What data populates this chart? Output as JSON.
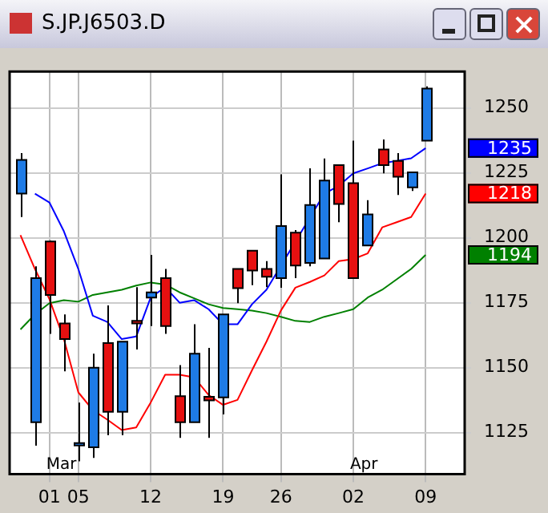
{
  "chart_data": {
    "type": "candlestick",
    "title": "S.JP.J6503.D",
    "categories": [
      null,
      null,
      "01",
      null,
      "05",
      null,
      null,
      null,
      null,
      "12",
      null,
      null,
      null,
      null,
      "19",
      null,
      null,
      null,
      "26",
      null,
      null,
      null,
      null,
      "02",
      null,
      null,
      null,
      null,
      "09"
    ],
    "ohlc": [
      [
        1217,
        1232.6,
        1208,
        1230
      ],
      [
        1129,
        1189,
        1120,
        1184.5
      ],
      [
        1198.6,
        1199,
        1163,
        1178
      ],
      [
        1167,
        1170.5,
        1148.6,
        1161
      ],
      [
        1121,
        1136.6,
        1114,
        1121
      ],
      [
        1119.4,
        1155.4,
        1115.3,
        1150
      ],
      [
        1159.5,
        1174,
        1124,
        1133
      ],
      [
        1133,
        1160,
        1124,
        1160
      ],
      [
        1168,
        1181,
        1157,
        1167
      ],
      [
        1177,
        1193.4,
        1166,
        1179
      ],
      [
        1184.5,
        1188,
        1163,
        1166
      ],
      [
        1139,
        1151,
        1123,
        1129
      ],
      [
        1129,
        1166.7,
        1129,
        1155.4
      ],
      [
        1138.8,
        1157.6,
        1123,
        1137.4
      ],
      [
        1138.6,
        1170.5,
        1132,
        1170.5
      ],
      [
        1188,
        1188,
        1174.8,
        1180.6
      ],
      [
        1195,
        1195,
        1181.8,
        1187.4
      ],
      [
        1188,
        1191,
        1181,
        1185
      ],
      [
        1184.5,
        1224.4,
        1180.8,
        1204.5
      ],
      [
        1202,
        1203,
        1184.5,
        1189.3
      ],
      [
        1190.3,
        1226.7,
        1189,
        1212.6
      ],
      [
        1192,
        1230.5,
        1192,
        1222
      ],
      [
        1228,
        1228,
        1206,
        1213
      ],
      [
        1221,
        1237.4,
        1184.5,
        1184.5
      ],
      [
        1197,
        1214.5,
        1197,
        1209
      ],
      [
        1234,
        1237.8,
        1224.8,
        1228
      ],
      [
        1229.6,
        1232.6,
        1216.5,
        1223.5
      ],
      [
        1219.4,
        1225.2,
        1218,
        1225.2
      ],
      [
        1237.4,
        1258.3,
        1237.4,
        1257.4
      ]
    ],
    "colors": [
      "#1e7be6",
      "#1e7be6",
      "#e61010",
      "#e61010",
      "#1e7be6",
      "#1e7be6",
      "#e61010",
      "#1e7be6",
      "#e61010",
      "#1e7be6",
      "#e61010",
      "#e61010",
      "#1e7be6",
      "#e61010",
      "#1e7be6",
      "#e61010",
      "#e61010",
      "#e61010",
      "#1e7be6",
      "#e61010",
      "#1e7be6",
      "#1e7be6",
      "#e61010",
      "#e61010",
      "#1e7be6",
      "#e61010",
      "#e61010",
      "#1e7be6",
      "#1e7be6"
    ],
    "series": [
      {
        "type": "line",
        "color": "#0000ff",
        "values": [
          null,
          1217,
          1213.6,
          1202.5,
          1188,
          1170,
          1167.6,
          1161,
          1162,
          1177,
          1181,
          1175,
          1176,
          1172.5,
          1166.7,
          1166.7,
          1174.4,
          1180,
          null,
          null,
          null,
          1217,
          1220,
          1224.8,
          1226.7,
          1228.7,
          1229.6,
          1230.6,
          1234.5
        ]
      },
      {
        "type": "line",
        "color": "#ff0000",
        "values": [
          1201,
          1188,
          1176.4,
          1161,
          1140.5,
          1133.7,
          1130,
          1126,
          1127,
          1136.6,
          1147.3,
          1147.3,
          1146.3,
          1139.5,
          1135.7,
          1137.6,
          1149,
          1160,
          1172,
          1180.8,
          1183,
          1185.5,
          1191,
          1191.8,
          1194,
          1204,
          1206,
          1208,
          1217
        ]
      },
      {
        "type": "line",
        "color": "#008000",
        "values": [
          1164.7,
          1170.5,
          1174.8,
          1176,
          1175.4,
          1178,
          1179,
          1180,
          1181.6,
          1182.8,
          1182,
          1179,
          1176.7,
          1174.4,
          1173,
          1172.5,
          1172,
          1171,
          1169.6,
          1168,
          1167.6,
          1169.6,
          1171,
          1172.5,
          1177,
          1180,
          1184,
          1188,
          1193.4
        ]
      }
    ],
    "ylim": [
      1109,
      1264
    ],
    "yticks": [
      1125,
      1150,
      1175,
      1200,
      1225,
      1250
    ],
    "grid": true,
    "marker": "none",
    "annotations": [
      "Mar",
      "Apr",
      "1235",
      "1218",
      "1194"
    ]
  }
}
